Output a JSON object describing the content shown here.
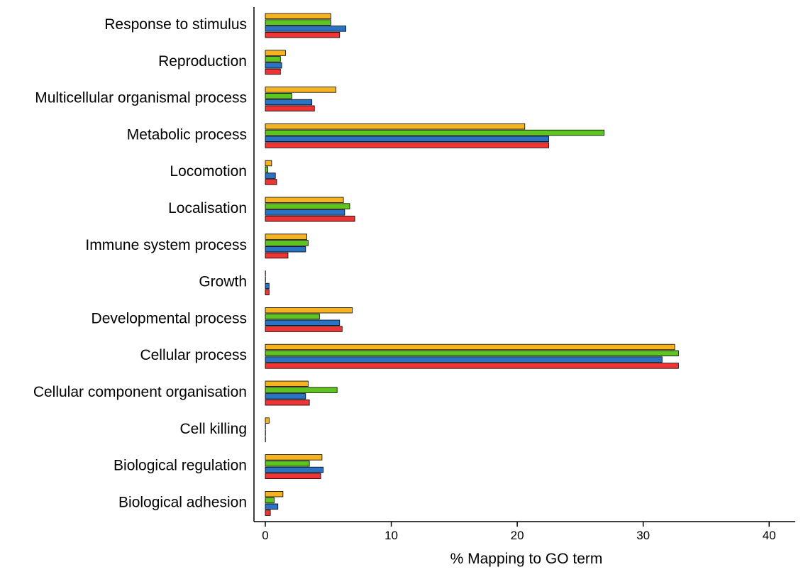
{
  "chart_data": {
    "type": "bar",
    "orientation": "horizontal",
    "title": "",
    "xlabel": "% Mapping to GO term",
    "ylabel": "",
    "xlim": [
      0,
      41
    ],
    "xticks": [
      0,
      10,
      20,
      30,
      40
    ],
    "grid": false,
    "legend": "none",
    "categories": [
      "Response to stimulus",
      "Reproduction",
      "Multicellular organismal process",
      "Metabolic process",
      "Locomotion",
      "Localisation",
      "Immune system process",
      "Growth",
      "Developmental process",
      "Cellular process",
      "Cellular component organisation",
      "Cell killing",
      "Biological regulation",
      "Biological adhesion"
    ],
    "series": [
      {
        "color": "#f5b31f",
        "values": [
          5.2,
          1.6,
          5.6,
          20.6,
          0.5,
          6.2,
          3.3,
          0.0,
          6.9,
          32.5,
          3.4,
          0.3,
          4.5,
          1.4
        ]
      },
      {
        "color": "#5ec41f",
        "values": [
          5.2,
          1.2,
          2.1,
          26.9,
          0.2,
          6.7,
          3.4,
          0.0,
          4.3,
          32.8,
          5.7,
          0.0,
          3.5,
          0.7
        ]
      },
      {
        "color": "#2a72c3",
        "values": [
          6.4,
          1.3,
          3.7,
          22.5,
          0.8,
          6.3,
          3.2,
          0.3,
          5.9,
          31.5,
          3.2,
          0.0,
          4.6,
          1.0
        ]
      },
      {
        "color": "#ee3434",
        "values": [
          5.9,
          1.2,
          3.9,
          22.5,
          0.9,
          7.1,
          1.8,
          0.3,
          6.1,
          32.8,
          3.5,
          0.0,
          4.4,
          0.4
        ]
      }
    ]
  }
}
